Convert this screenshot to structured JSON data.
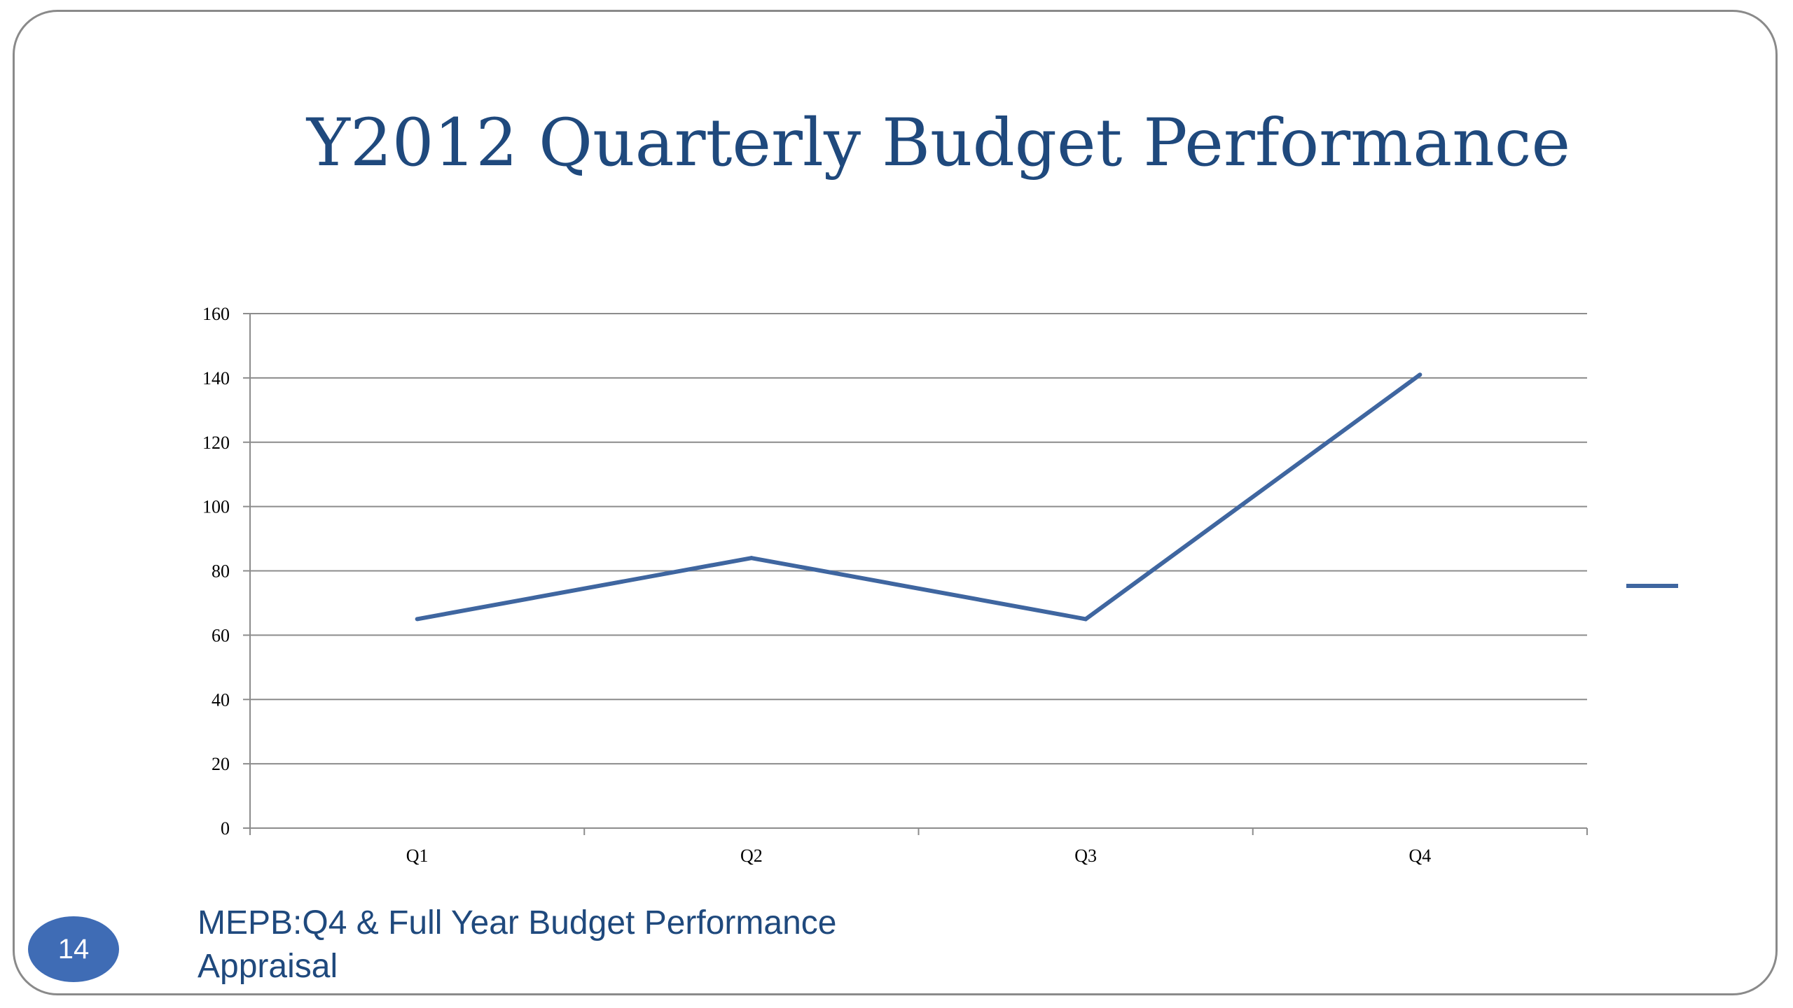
{
  "slide": {
    "title": "Y2012 Quarterly Budget Performance",
    "number": "14",
    "footer_line1": "MEPB:Q4 & Full Year  Budget Performance",
    "footer_line2": "Appraisal"
  },
  "colors": {
    "title": "#1f497d",
    "series": "#3f66a0",
    "grid": "#8c8c8c",
    "badge": "#3f6cb5"
  },
  "chart_data": {
    "type": "line",
    "title": "",
    "xlabel": "",
    "ylabel": "",
    "categories": [
      "Q1",
      "Q2",
      "Q3",
      "Q4"
    ],
    "series": [
      {
        "values": [
          65,
          84,
          65,
          141
        ]
      }
    ],
    "ylim": [
      0,
      160
    ],
    "yticks": [
      "0",
      "20",
      "40",
      "60",
      "80",
      "100",
      "120",
      "140",
      "160"
    ],
    "grid": true,
    "legend_position": "right"
  }
}
